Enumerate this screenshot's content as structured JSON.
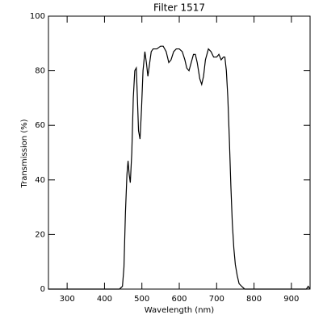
{
  "chart_data": {
    "type": "line",
    "title": "Filter 1517",
    "xlabel": "Wavelength (nm)",
    "ylabel": "Transmission (%)",
    "x": [
      250,
      440,
      448,
      452,
      456,
      460,
      463,
      466,
      469,
      473,
      477,
      481,
      485,
      488,
      491,
      495,
      499,
      503,
      508,
      512,
      516,
      520,
      525,
      530,
      540,
      550,
      557,
      565,
      572,
      578,
      585,
      592,
      600,
      608,
      615,
      620,
      626,
      632,
      638,
      643,
      648,
      655,
      660,
      665,
      670,
      678,
      685,
      692,
      700,
      706,
      712,
      718,
      722,
      726,
      730,
      734,
      738,
      742,
      746,
      750,
      755,
      760,
      767,
      775,
      785,
      800,
      900,
      940,
      945,
      950
    ],
    "values": [
      0,
      0,
      1,
      8,
      28,
      42,
      47,
      42,
      39,
      50,
      70,
      80,
      81,
      70,
      58,
      55,
      66,
      80,
      87,
      83,
      78,
      82,
      87,
      88,
      88,
      89,
      89,
      87,
      83,
      84,
      87,
      88,
      88,
      87,
      84,
      81,
      80,
      83,
      86,
      86,
      83,
      77,
      75,
      78,
      84,
      88,
      87,
      85,
      85,
      86,
      84,
      85,
      85,
      80,
      70,
      55,
      38,
      24,
      15,
      9,
      5,
      2,
      1,
      0,
      0,
      0,
      0,
      0,
      1,
      0
    ],
    "color": "#000000",
    "xlim": [
      250,
      950
    ],
    "xticks": [
      300,
      400,
      500,
      600,
      700,
      800,
      900
    ],
    "ylim": [
      0,
      100
    ],
    "yticks": [
      0,
      20,
      40,
      60,
      80,
      100
    ]
  }
}
